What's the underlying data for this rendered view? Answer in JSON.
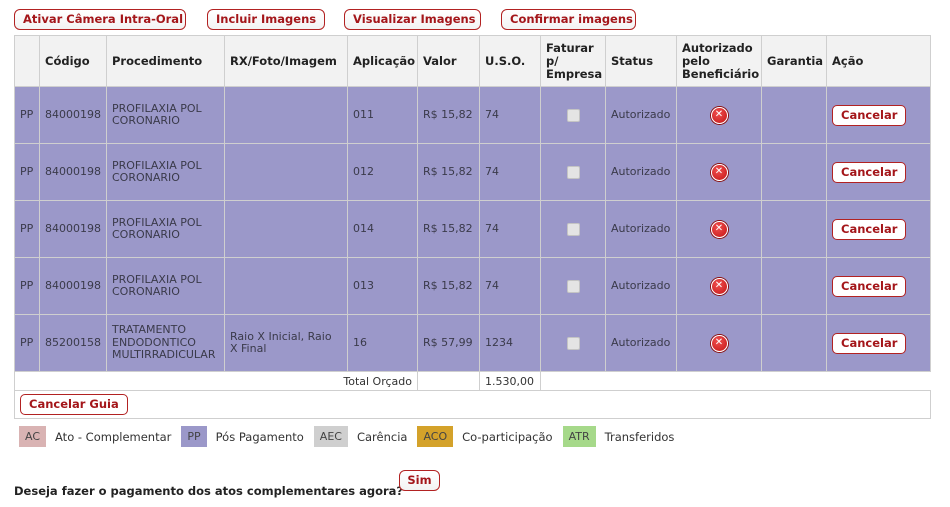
{
  "top_buttons": {
    "camera": "Ativar Câmera Intra-Oral",
    "include": "Incluir Imagens",
    "view": "Visualizar Imagens",
    "confirm": "Confirmar imagens"
  },
  "table": {
    "headers": {
      "codigo": "Código",
      "procedimento": "Procedimento",
      "rx": "RX/Foto/Imagem",
      "aplicacao": "Aplicação",
      "valor": "Valor",
      "uso": "U.S.O.",
      "faturar": "Faturar p/ Empresa",
      "status": "Status",
      "autorizado": "Autorizado pelo Beneficiário",
      "garantia": "Garantia",
      "acao": "Ação"
    },
    "rows": [
      {
        "tipo": "PP",
        "codigo": "84000198",
        "procedimento": "PROFILAXIA POL CORONARIO",
        "rx": "",
        "aplicacao": "011",
        "valor": "R$ 15,82",
        "uso": "74",
        "status": "Autorizado",
        "garantia": "",
        "acao": "Cancelar"
      },
      {
        "tipo": "PP",
        "codigo": "84000198",
        "procedimento": "PROFILAXIA POL CORONARIO",
        "rx": "",
        "aplicacao": "012",
        "valor": "R$ 15,82",
        "uso": "74",
        "status": "Autorizado",
        "garantia": "",
        "acao": "Cancelar"
      },
      {
        "tipo": "PP",
        "codigo": "84000198",
        "procedimento": "PROFILAXIA POL CORONARIO",
        "rx": "",
        "aplicacao": "014",
        "valor": "R$ 15,82",
        "uso": "74",
        "status": "Autorizado",
        "garantia": "",
        "acao": "Cancelar"
      },
      {
        "tipo": "PP",
        "codigo": "84000198",
        "procedimento": "PROFILAXIA POL CORONARIO",
        "rx": "",
        "aplicacao": "013",
        "valor": "R$ 15,82",
        "uso": "74",
        "status": "Autorizado",
        "garantia": "",
        "acao": "Cancelar"
      },
      {
        "tipo": "PP",
        "codigo": "85200158",
        "procedimento": "TRATAMENTO ENDODONTICO MULTIRRADICULAR",
        "rx": "Raio X Inicial, Raio X Final",
        "aplicacao": "16",
        "valor": "R$ 57,99",
        "uso": "1234",
        "status": "Autorizado",
        "garantia": "",
        "acao": "Cancelar"
      }
    ],
    "total_label": "Total Orçado",
    "total_uso": "1.530,00",
    "cancel_guide": "Cancelar Guia"
  },
  "legend": [
    {
      "code": "AC",
      "label": "Ato - Complementar",
      "color": "#d9b3b3"
    },
    {
      "code": "PP",
      "label": "Pós Pagamento",
      "color": "#9b98c9"
    },
    {
      "code": "AEC",
      "label": "Carência",
      "color": "#cfcfcf"
    },
    {
      "code": "ACO",
      "label": "Co-participação",
      "color": "#d4a22a"
    },
    {
      "code": "ATR",
      "label": "Transferidos",
      "color": "#a6d98a"
    }
  ],
  "question": {
    "text": "Deseja fazer o pagamento dos atos complementares agora?",
    "yes": "Sim"
  },
  "colors": {
    "pp_row": "#9b98c9",
    "button_text": "#a4161a",
    "denied_icon": "#d32020"
  }
}
